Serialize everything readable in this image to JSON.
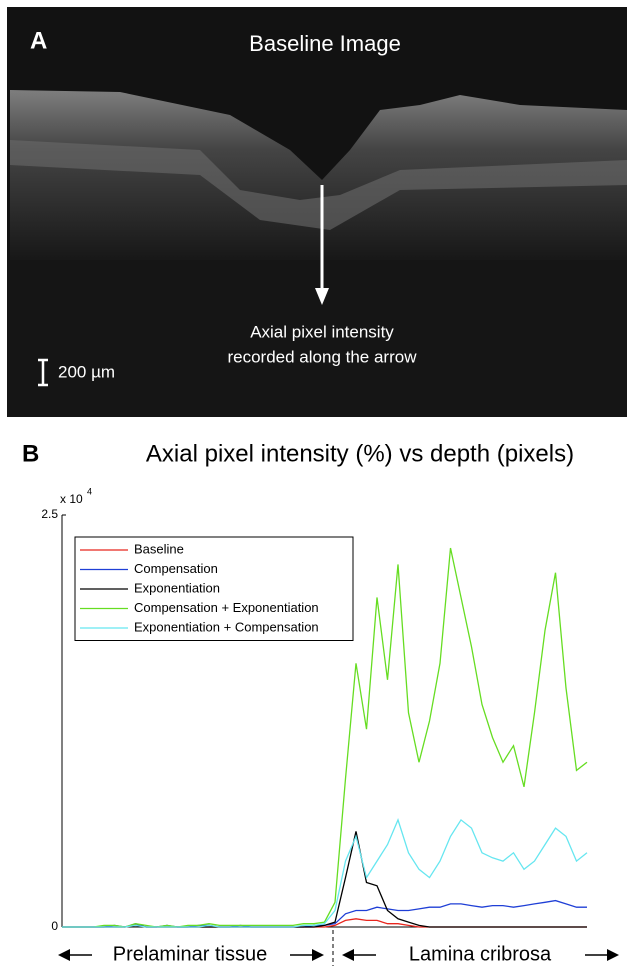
{
  "image_panel": {
    "label": "A",
    "title": "Baseline Image",
    "annotation": [
      "Axial pixel intensity",
      "recorded along the arrow"
    ],
    "scale_bar": "200 µm"
  },
  "chart_data": {
    "type": "line",
    "panel_label": "B",
    "title": "Axial pixel intensity (%) vs depth (pixels)",
    "y_multiplier": {
      "base": "x 10",
      "exponent": "4"
    },
    "regions": [
      "Prelaminar tissue",
      "Lamina cribrosa"
    ],
    "x": [
      0,
      5,
      10,
      15,
      20,
      25,
      30,
      35,
      40,
      45,
      50,
      55,
      60,
      65,
      70,
      75,
      80,
      85,
      90,
      95,
      100,
      105,
      110,
      115,
      120,
      125,
      130,
      135,
      140,
      145,
      150,
      155,
      160,
      165,
      170,
      175,
      180,
      185,
      190,
      195,
      200,
      205,
      210,
      215,
      220,
      225,
      230,
      235,
      240,
      245,
      250
    ],
    "xlim": [
      0,
      250
    ],
    "ylim": [
      0,
      2.5
    ],
    "yticks": [
      0,
      2.5
    ],
    "legend": "upper left",
    "series": [
      {
        "name": "Baseline",
        "color": "#e8261e",
        "values": [
          0,
          0,
          0,
          0,
          0,
          0,
          0,
          0.01,
          0,
          0,
          0,
          0,
          0,
          0,
          0,
          0,
          0,
          0,
          0,
          0,
          0,
          0,
          0,
          0,
          0,
          0,
          0.01,
          0.04,
          0.05,
          0.04,
          0.04,
          0.02,
          0.02,
          0.01,
          0,
          0,
          0,
          0,
          0,
          0,
          0,
          0,
          0,
          0,
          0,
          0,
          0,
          0,
          0,
          0,
          0
        ]
      },
      {
        "name": "Compensation",
        "color": "#1f3fd6",
        "values": [
          0,
          0,
          0,
          0,
          0,
          0.01,
          0,
          0.02,
          0,
          0,
          0.01,
          0,
          0,
          0.01,
          0.01,
          0,
          0,
          0.01,
          0,
          0,
          0,
          0,
          0,
          0,
          0.01,
          0.01,
          0.02,
          0.08,
          0.1,
          0.1,
          0.12,
          0.11,
          0.1,
          0.1,
          0.11,
          0.12,
          0.12,
          0.14,
          0.14,
          0.13,
          0.12,
          0.13,
          0.13,
          0.12,
          0.13,
          0.14,
          0.15,
          0.16,
          0.14,
          0.12,
          0.12
        ]
      },
      {
        "name": "Exponentiation",
        "color": "#000000",
        "values": [
          0,
          0,
          0,
          0,
          0,
          0,
          0,
          0.01,
          0,
          0,
          0,
          0,
          0,
          0,
          0,
          0,
          0,
          0,
          0,
          0,
          0,
          0,
          0,
          0,
          0,
          0.01,
          0.03,
          0.3,
          0.58,
          0.27,
          0.25,
          0.1,
          0.05,
          0.03,
          0.01,
          0,
          0,
          0,
          0,
          0,
          0,
          0,
          0,
          0,
          0,
          0,
          0,
          0,
          0,
          0,
          0
        ]
      },
      {
        "name": "Compensation + Exponentiation",
        "color": "#66dd22",
        "values": [
          0,
          0,
          0,
          0,
          0.01,
          0.01,
          0,
          0.02,
          0.01,
          0,
          0.01,
          0,
          0.01,
          0.01,
          0.02,
          0.01,
          0.01,
          0.01,
          0.01,
          0.01,
          0.01,
          0.01,
          0.01,
          0.02,
          0.02,
          0.03,
          0.15,
          0.9,
          1.6,
          1.2,
          2.0,
          1.5,
          2.2,
          1.3,
          1.0,
          1.25,
          1.6,
          2.3,
          2.0,
          1.7,
          1.35,
          1.15,
          1.0,
          1.1,
          0.85,
          1.3,
          1.8,
          2.15,
          1.45,
          0.95,
          1.0
        ]
      },
      {
        "name": "Exponentiation + Compensation",
        "color": "#66e6f0",
        "values": [
          0,
          0,
          0,
          0,
          0,
          0,
          0,
          0.01,
          0,
          0,
          0,
          0,
          0,
          0,
          0.01,
          0,
          0,
          0,
          0,
          0,
          0,
          0,
          0,
          0.01,
          0.01,
          0.02,
          0.1,
          0.4,
          0.55,
          0.3,
          0.4,
          0.5,
          0.65,
          0.45,
          0.35,
          0.3,
          0.4,
          0.55,
          0.65,
          0.6,
          0.45,
          0.42,
          0.4,
          0.45,
          0.35,
          0.4,
          0.5,
          0.6,
          0.55,
          0.4,
          0.45
        ]
      }
    ]
  }
}
